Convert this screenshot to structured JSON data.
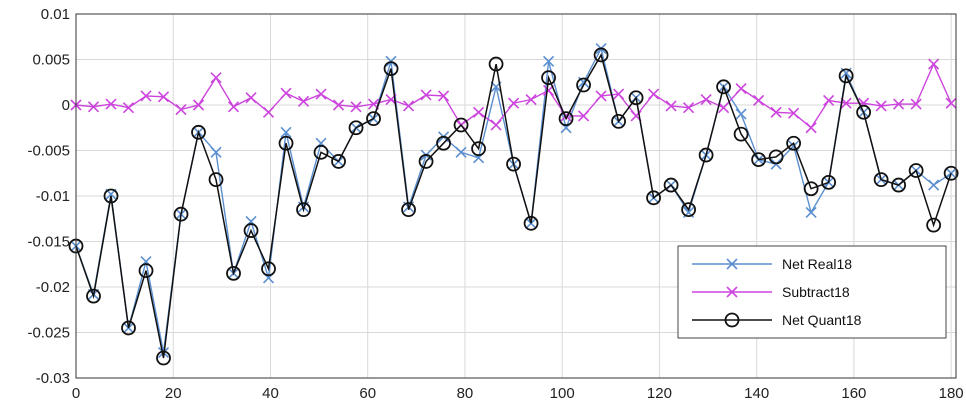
{
  "chart_data": {
    "type": "line",
    "title": "",
    "xlabel": "",
    "ylabel": "",
    "xlim": [
      0,
      181
    ],
    "ylim": [
      -0.03,
      0.01
    ],
    "xticks": [
      0,
      20,
      40,
      60,
      80,
      100,
      120,
      140,
      160,
      180
    ],
    "xtick_labels": [
      "0",
      "20",
      "40",
      "60",
      "80",
      "100",
      "120",
      "140",
      "160",
      "180"
    ],
    "yticks": [
      0.01,
      0.005,
      0,
      -0.005,
      -0.01,
      -0.015,
      -0.02,
      -0.025,
      -0.03
    ],
    "ytick_labels": [
      "0.01",
      "0.005",
      "0",
      "-0.005",
      "-0.01",
      "-0.015",
      "-0.02",
      "-0.025",
      "-0.03"
    ],
    "grid": true,
    "legend_position": "bottom-right",
    "x": [
      0,
      3.6,
      7.2,
      10.8,
      14.4,
      18,
      21.6,
      25.2,
      28.8,
      32.4,
      36,
      39.6,
      43.2,
      46.8,
      50.4,
      54,
      57.6,
      61.2,
      64.8,
      68.4,
      72,
      75.6,
      79.2,
      82.8,
      86.4,
      90,
      93.6,
      97.2,
      100.8,
      104.4,
      108,
      111.6,
      115.2,
      118.8,
      122.4,
      126,
      129.6,
      133.2,
      136.8,
      140.4,
      144,
      147.6,
      151.2,
      154.8,
      158.4,
      162,
      165.6,
      169.2,
      172.8,
      176.4,
      180
    ],
    "series": [
      {
        "name": "Net Real18",
        "color": "#5b8fd0",
        "marker": "x",
        "values": [
          -0.0155,
          -0.0208,
          -0.0098,
          -0.0245,
          -0.0172,
          -0.0272,
          -0.012,
          -0.003,
          -0.0052,
          -0.0185,
          -0.0128,
          -0.019,
          -0.003,
          -0.0112,
          -0.0042,
          -0.0062,
          -0.0025,
          -0.0015,
          0.0048,
          -0.0112,
          -0.0055,
          -0.0035,
          -0.0052,
          -0.0058,
          0.002,
          -0.0065,
          -0.013,
          0.0048,
          -0.0025,
          0.0025,
          0.0062,
          -0.0018,
          0.0008,
          -0.0102,
          -0.0088,
          -0.0118,
          -0.0055,
          0.002,
          -0.001,
          -0.006,
          -0.0065,
          -0.0045,
          -0.0118,
          -0.0085,
          0.0035,
          -0.0008,
          -0.0082,
          -0.0088,
          -0.0072,
          -0.0088,
          -0.0075
        ]
      },
      {
        "name": "Subtract18",
        "color": "#cc44dd",
        "marker": "x",
        "values": [
          0.0,
          -0.0002,
          0.0001,
          -0.0003,
          0.001,
          0.0009,
          -0.0005,
          0.0,
          0.003,
          -0.0002,
          0.0008,
          -0.0008,
          0.0013,
          0.0004,
          0.0012,
          0.0,
          -0.0002,
          0.0001,
          0.0006,
          -0.0001,
          0.0011,
          0.001,
          -0.0022,
          -0.0008,
          -0.0022,
          0.0002,
          0.0006,
          0.0016,
          -0.0012,
          -0.0012,
          0.001,
          0.0012,
          -0.0012,
          0.0012,
          -0.0001,
          -0.0003,
          0.0006,
          -0.0003,
          0.0018,
          0.0005,
          -0.0008,
          -0.0009,
          -0.0025,
          0.0005,
          0.0002,
          0.0002,
          -0.0001,
          0.0001,
          0.0001,
          0.0045,
          0.0002
        ]
      },
      {
        "name": "Net Quant18",
        "color": "#111111",
        "marker": "o",
        "values": [
          -0.0155,
          -0.021,
          -0.01,
          -0.0245,
          -0.0182,
          -0.0278,
          -0.012,
          -0.003,
          -0.0082,
          -0.0185,
          -0.0138,
          -0.018,
          -0.0042,
          -0.0115,
          -0.0052,
          -0.0062,
          -0.0025,
          -0.0015,
          0.004,
          -0.0115,
          -0.0062,
          -0.0042,
          -0.0022,
          -0.0048,
          0.0045,
          -0.0065,
          -0.013,
          0.003,
          -0.0015,
          0.0022,
          0.0055,
          -0.0018,
          0.0008,
          -0.0102,
          -0.0088,
          -0.0115,
          -0.0055,
          0.002,
          -0.0032,
          -0.006,
          -0.0057,
          -0.0042,
          -0.0092,
          -0.0085,
          0.0032,
          -0.0008,
          -0.0082,
          -0.0088,
          -0.0072,
          -0.0132,
          -0.0075
        ]
      }
    ]
  }
}
